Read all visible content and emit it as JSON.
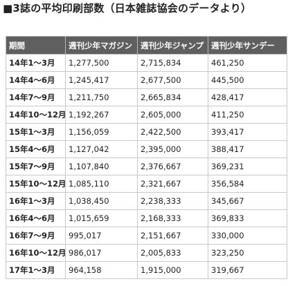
{
  "title": "■3誌の平均印刷部数（日本雑誌協会のデータより）",
  "table": {
    "headers": [
      "期間",
      "週刊少年マガジン",
      "週刊少年ジャンプ",
      "週刊少年サンデー"
    ],
    "rows": [
      [
        "14年1〜3月",
        "1,277,500",
        "2,715,834",
        "461,250"
      ],
      [
        "14年4〜6月",
        "1,245,417",
        "2,677,500",
        "445,500"
      ],
      [
        "14年7〜9月",
        "1,211,750",
        "2,665,834",
        "428,417"
      ],
      [
        "14年10〜12月",
        "1,192,267",
        "2,605,000",
        "411,250"
      ],
      [
        "15年1〜3月",
        "1,156,059",
        "2,422,500",
        "393,417"
      ],
      [
        "15年4〜6月",
        "1,127,042",
        "2,395,000",
        "388,417"
      ],
      [
        "15年7〜9月",
        "1,107,840",
        "2,376,667",
        "369,231"
      ],
      [
        "15年10〜12月",
        "1,085,110",
        "2,321,667",
        "356,584"
      ],
      [
        "16年1〜3月",
        "1,038,450",
        "2,238,333",
        "345,667"
      ],
      [
        "16年4〜6月",
        "1,015,659",
        "2,168,333",
        "369,833"
      ],
      [
        "16年7〜9月",
        "995,017",
        "2,151,667",
        "330,000"
      ],
      [
        "16年10〜12月",
        "986,017",
        "2,005,833",
        "323,250"
      ],
      [
        "17年1〜3月",
        "964,158",
        "1,915,000",
        "319,667"
      ]
    ]
  }
}
